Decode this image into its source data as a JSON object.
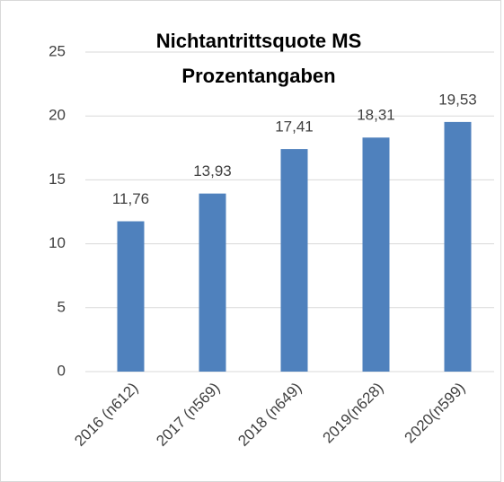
{
  "chart_data": {
    "type": "bar",
    "title": "Nichtantrittsquote MS",
    "subtitle": "Prozentangaben",
    "categories": [
      "2016 (n612)",
      "2017 (n569)",
      "2018 (n649)",
      "2019(n628)",
      "2020(n599)"
    ],
    "values": [
      11.76,
      13.93,
      17.41,
      18.31,
      19.53
    ],
    "value_labels": [
      "11,76",
      "13,93",
      "17,41",
      "18,31",
      "19,53"
    ],
    "color": "#4f81bd",
    "ylim": [
      0,
      25
    ],
    "yticks": [
      0,
      5,
      10,
      15,
      20,
      25
    ],
    "grid": true
  }
}
